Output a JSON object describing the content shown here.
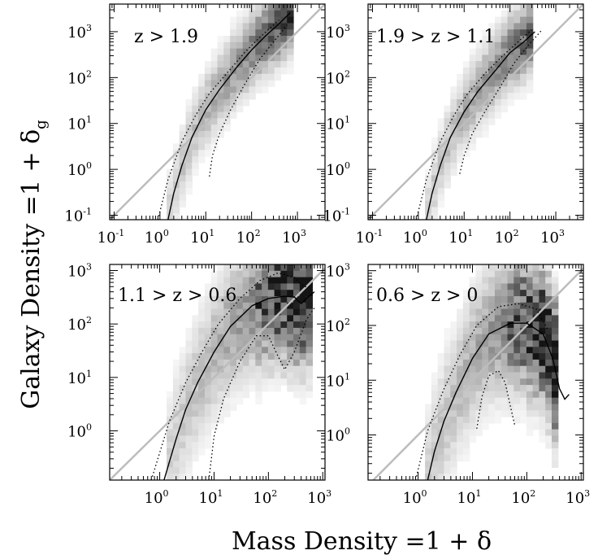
{
  "figure": {
    "xlabel": "Mass Density =1 + δ",
    "ylabel_main": "Galaxy Density =1 + δ",
    "ylabel_sub": "g"
  },
  "chart_data": [
    {
      "type": "heatmap",
      "panel_label": "z > 1.9",
      "x_scale": "log",
      "y_scale": "log",
      "xlim": [
        0.08,
        4000
      ],
      "ylim": [
        0.08,
        4000
      ],
      "x_ticks": [
        {
          "base": "10",
          "exp": "-1"
        },
        {
          "base": "10",
          "exp": "0"
        },
        {
          "base": "10",
          "exp": "1"
        },
        {
          "base": "10",
          "exp": "2"
        },
        {
          "base": "10",
          "exp": "3"
        }
      ],
      "y_ticks": [
        {
          "base": "10",
          "exp": "-1"
        },
        {
          "base": "10",
          "exp": "0"
        },
        {
          "base": "10",
          "exp": "1"
        },
        {
          "base": "10",
          "exp": "2"
        },
        {
          "base": "10",
          "exp": "3"
        }
      ],
      "identity_line": true,
      "median_curve": [
        [
          1.5,
          0.08
        ],
        [
          2,
          0.3
        ],
        [
          3,
          1.2
        ],
        [
          5,
          5
        ],
        [
          10,
          20
        ],
        [
          20,
          55
        ],
        [
          50,
          180
        ],
        [
          100,
          400
        ],
        [
          200,
          800
        ],
        [
          400,
          1500
        ],
        [
          700,
          2600
        ]
      ],
      "dotted_upper": [
        [
          0.9,
          0.08
        ],
        [
          1.5,
          0.6
        ],
        [
          3,
          4
        ],
        [
          6,
          15
        ],
        [
          12,
          45
        ],
        [
          30,
          130
        ],
        [
          70,
          350
        ],
        [
          150,
          750
        ],
        [
          400,
          1800
        ]
      ],
      "dotted_lower": [
        [
          12,
          0.7
        ],
        [
          14,
          2
        ],
        [
          20,
          6
        ],
        [
          35,
          20
        ],
        [
          70,
          70
        ],
        [
          150,
          250
        ],
        [
          300,
          600
        ],
        [
          600,
          1400
        ]
      ],
      "density_band": {
        "peak_x": 700,
        "peak_y": 2600,
        "low_x": 1,
        "low_y": 0.1,
        "drop": false
      }
    },
    {
      "type": "heatmap",
      "panel_label": "1.9 > z > 1.1",
      "x_scale": "log",
      "y_scale": "log",
      "xlim": [
        0.08,
        4000
      ],
      "ylim": [
        0.08,
        4000
      ],
      "x_ticks": [
        {
          "base": "10",
          "exp": "-1"
        },
        {
          "base": "10",
          "exp": "0"
        },
        {
          "base": "10",
          "exp": "1"
        },
        {
          "base": "10",
          "exp": "2"
        },
        {
          "base": "10",
          "exp": "3"
        }
      ],
      "y_ticks": [
        {
          "base": "10",
          "exp": "-1"
        },
        {
          "base": "10",
          "exp": "0"
        },
        {
          "base": "10",
          "exp": "1"
        },
        {
          "base": "10",
          "exp": "2"
        },
        {
          "base": "10",
          "exp": "3"
        }
      ],
      "identity_line": true,
      "median_curve": [
        [
          1.5,
          0.08
        ],
        [
          2,
          0.3
        ],
        [
          3,
          1.2
        ],
        [
          5,
          5
        ],
        [
          10,
          18
        ],
        [
          20,
          50
        ],
        [
          50,
          150
        ],
        [
          100,
          350
        ],
        [
          200,
          600
        ],
        [
          350,
          1000
        ]
      ],
      "dotted_upper": [
        [
          0.9,
          0.08
        ],
        [
          1.5,
          0.6
        ],
        [
          3,
          4
        ],
        [
          6,
          15
        ],
        [
          12,
          45
        ],
        [
          30,
          130
        ],
        [
          70,
          300
        ],
        [
          150,
          600
        ],
        [
          300,
          1100
        ]
      ],
      "dotted_lower": [
        [
          8,
          0.8
        ],
        [
          10,
          2
        ],
        [
          15,
          6
        ],
        [
          30,
          20
        ],
        [
          60,
          60
        ],
        [
          120,
          200
        ],
        [
          250,
          500
        ],
        [
          500,
          1100
        ]
      ],
      "density_band": {
        "peak_x": 600,
        "peak_y": 2200,
        "low_x": 1,
        "low_y": 0.1,
        "drop": false
      }
    },
    {
      "type": "heatmap",
      "panel_label": "1.1 > z > 0.6",
      "x_scale": "log",
      "y_scale": "log",
      "xlim": [
        0.12,
        1100
      ],
      "ylim": [
        0.12,
        1300
      ],
      "x_ticks": [
        {
          "base": "10",
          "exp": "0"
        },
        {
          "base": "10",
          "exp": "1"
        },
        {
          "base": "10",
          "exp": "2"
        },
        {
          "base": "10",
          "exp": "3"
        }
      ],
      "y_ticks": [
        {
          "base": "10",
          "exp": "0"
        },
        {
          "base": "10",
          "exp": "1"
        },
        {
          "base": "10",
          "exp": "2"
        },
        {
          "base": "10",
          "exp": "3"
        }
      ],
      "identity_line": true,
      "median_curve": [
        [
          1.2,
          0.12
        ],
        [
          2,
          0.7
        ],
        [
          3,
          2.5
        ],
        [
          5,
          8
        ],
        [
          10,
          30
        ],
        [
          20,
          90
        ],
        [
          50,
          220
        ],
        [
          100,
          300
        ],
        [
          200,
          330
        ],
        [
          300,
          320
        ],
        [
          400,
          240
        ],
        [
          500,
          300
        ],
        [
          700,
          400
        ]
      ],
      "dotted_upper": [
        [
          0.7,
          0.12
        ],
        [
          1.5,
          1.5
        ],
        [
          3,
          8
        ],
        [
          6,
          30
        ],
        [
          12,
          100
        ],
        [
          30,
          300
        ],
        [
          70,
          650
        ],
        [
          150,
          900
        ],
        [
          300,
          750
        ],
        [
          450,
          500
        ],
        [
          600,
          500
        ]
      ],
      "dotted_lower": [
        [
          8,
          0.12
        ],
        [
          10,
          0.8
        ],
        [
          15,
          4
        ],
        [
          30,
          20
        ],
        [
          60,
          60
        ],
        [
          100,
          60
        ],
        [
          150,
          25
        ],
        [
          200,
          14
        ],
        [
          300,
          30
        ],
        [
          500,
          120
        ],
        [
          700,
          200
        ]
      ],
      "density_band": {
        "peak_x": 500,
        "peak_y": 800,
        "low_x": 1,
        "low_y": 0.15,
        "drop": true
      }
    },
    {
      "type": "heatmap",
      "panel_label": "0.6 > z > 0",
      "x_scale": "log",
      "y_scale": "log",
      "xlim": [
        0.12,
        1100
      ],
      "ylim": [
        0.15,
        1300
      ],
      "x_ticks": [
        {
          "base": "10",
          "exp": "0"
        },
        {
          "base": "10",
          "exp": "1"
        },
        {
          "base": "10",
          "exp": "2"
        },
        {
          "base": "10",
          "exp": "3"
        }
      ],
      "y_ticks": [
        {
          "base": "10",
          "exp": "0"
        },
        {
          "base": "10",
          "exp": "1"
        },
        {
          "base": "10",
          "exp": "2"
        },
        {
          "base": "10",
          "exp": "3"
        }
      ],
      "identity_line": true,
      "median_curve": [
        [
          1.5,
          0.15
        ],
        [
          2,
          0.5
        ],
        [
          3,
          1.8
        ],
        [
          5,
          6
        ],
        [
          10,
          25
        ],
        [
          20,
          70
        ],
        [
          50,
          110
        ],
        [
          100,
          110
        ],
        [
          200,
          70
        ],
        [
          300,
          25
        ],
        [
          400,
          7
        ],
        [
          500,
          4.5
        ],
        [
          600,
          5.5
        ]
      ],
      "dotted_upper": [
        [
          0.9,
          0.15
        ],
        [
          1.5,
          1.2
        ],
        [
          3,
          7
        ],
        [
          6,
          30
        ],
        [
          12,
          100
        ],
        [
          30,
          220
        ],
        [
          70,
          250
        ],
        [
          150,
          200
        ],
        [
          250,
          80
        ]
      ],
      "dotted_lower": [
        [
          12,
          1.3
        ],
        [
          15,
          5
        ],
        [
          20,
          12
        ],
        [
          30,
          15
        ],
        [
          40,
          9
        ],
        [
          60,
          1.5
        ]
      ],
      "density_band": {
        "peak_x": 300,
        "peak_y": 300,
        "low_x": 1,
        "low_y": 0.2,
        "drop": true
      }
    }
  ]
}
